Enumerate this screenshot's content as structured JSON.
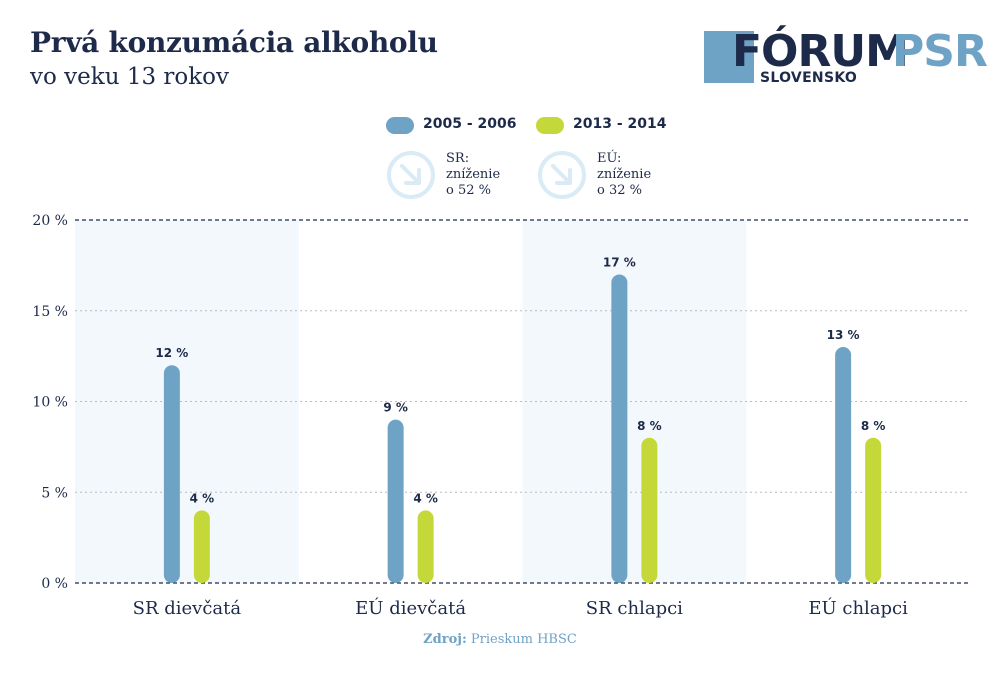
{
  "header": {
    "title": "Prvá konzumácia alkoholu",
    "subtitle": "vo veku 13 rokov"
  },
  "logo": {
    "word1": "FÓRUM",
    "word2": "PSR",
    "sub": "SLOVENSKO"
  },
  "changes": [
    {
      "line1": "SR:",
      "line2": "zníženie",
      "line3": "o 52 %"
    },
    {
      "line1": "EÚ:",
      "line2": "zníženie",
      "line3": "o 32 %"
    }
  ],
  "footer": {
    "label": "Zdroj:",
    "text": "Prieskum HBSC"
  },
  "colors": {
    "series1": "#6fa3c6",
    "series2": "#c5d83a",
    "text": "#1d2a4a",
    "highlight_bg": "#f3f8fd",
    "icon": "#d9ebf5"
  },
  "chart_data": {
    "type": "bar",
    "categories": [
      "SR dievčatá",
      "EÚ dievčatá",
      "SR chlapci",
      "EÚ chlapci"
    ],
    "series": [
      {
        "name": "2005 - 2006",
        "values": [
          12,
          9,
          17,
          13
        ],
        "labels": [
          "12 %",
          "9 %",
          "17 %",
          "13 %"
        ]
      },
      {
        "name": "2013 - 2014",
        "values": [
          4,
          4,
          8,
          8
        ],
        "labels": [
          "4 %",
          "4 %",
          "8 %",
          "8 %"
        ]
      }
    ],
    "yticks": [
      0,
      5,
      10,
      15,
      20
    ],
    "ytick_labels": [
      "0 %",
      "5 %",
      "10 %",
      "15 %",
      "20 %"
    ],
    "ylim": [
      0,
      20
    ],
    "grid": true,
    "legend_position": "top-center",
    "source": "Prieskum HBSC"
  }
}
